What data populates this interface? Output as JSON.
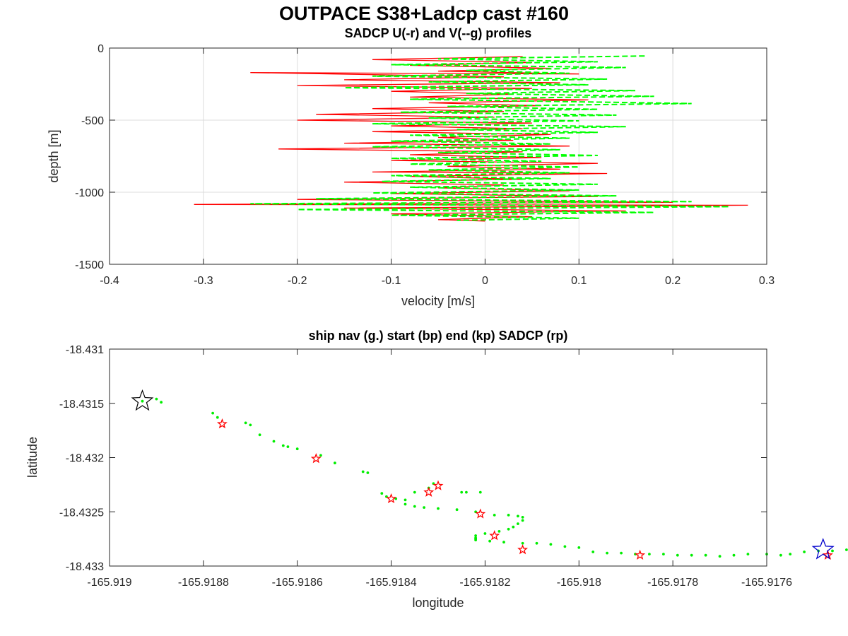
{
  "suptitle": "OUTPACE S38+Ladcp cast #160",
  "chart_data": [
    {
      "type": "line",
      "title": "SADCP U(-r) and V(--g) profiles",
      "xlabel": "velocity [m/s]",
      "ylabel": "depth [m]",
      "xlim": [
        -0.4,
        0.3
      ],
      "ylim": [
        -1500,
        0
      ],
      "xticks": [
        -0.4,
        -0.3,
        -0.2,
        -0.1,
        0,
        0.1,
        0.2,
        0.3
      ],
      "xtick_labels": [
        "-0.4",
        "-0.3",
        "-0.2",
        "-0.1",
        "0",
        "0.1",
        "0.2",
        "0.3"
      ],
      "yticks": [
        0,
        -500,
        -1000,
        -1500
      ],
      "ytick_labels": [
        "0",
        "-500",
        "-1000",
        "-1500"
      ],
      "grid": true,
      "series": [
        {
          "name": "U",
          "color": "#ff0000",
          "style": "solid",
          "points": [
            [
              0.04,
              -60
            ],
            [
              -0.12,
              -80
            ],
            [
              0.05,
              -100
            ],
            [
              -0.08,
              -120
            ],
            [
              0.07,
              -140
            ],
            [
              -0.05,
              -160
            ],
            [
              0.1,
              -180
            ],
            [
              -0.25,
              -170
            ],
            [
              0.02,
              -200
            ],
            [
              -0.15,
              -220
            ],
            [
              0.08,
              -240
            ],
            [
              -0.2,
              -260
            ],
            [
              0.05,
              -280
            ],
            [
              -0.1,
              -300
            ],
            [
              0.03,
              -320
            ],
            [
              -0.08,
              -340
            ],
            [
              0.11,
              -360
            ],
            [
              -0.06,
              -380
            ],
            [
              0.06,
              -400
            ],
            [
              -0.12,
              -420
            ],
            [
              0.02,
              -440
            ],
            [
              -0.18,
              -460
            ],
            [
              0.01,
              -480
            ],
            [
              -0.2,
              -500
            ],
            [
              0.05,
              -520
            ],
            [
              -0.1,
              -540
            ],
            [
              0.04,
              -560
            ],
            [
              -0.12,
              -580
            ],
            [
              0.07,
              -600
            ],
            [
              -0.05,
              -620
            ],
            [
              0.03,
              -640
            ],
            [
              -0.15,
              -660
            ],
            [
              0.09,
              -680
            ],
            [
              -0.22,
              -700
            ],
            [
              0.04,
              -720
            ],
            [
              -0.08,
              -740
            ],
            [
              0.06,
              -760
            ],
            [
              -0.1,
              -780
            ],
            [
              0.12,
              -800
            ],
            [
              -0.04,
              -820
            ],
            [
              0.08,
              -840
            ],
            [
              -0.12,
              -860
            ],
            [
              0.13,
              -870
            ],
            [
              -0.08,
              -890
            ],
            [
              0.04,
              -910
            ],
            [
              -0.15,
              -930
            ],
            [
              0.02,
              -950
            ],
            [
              -0.05,
              -970
            ],
            [
              0.09,
              -990
            ],
            [
              -0.1,
              -1010
            ],
            [
              0.12,
              -1030
            ],
            [
              -0.2,
              -1050
            ],
            [
              0.2,
              -1070
            ],
            [
              -0.31,
              -1085
            ],
            [
              0.28,
              -1090
            ],
            [
              -0.15,
              -1110
            ],
            [
              0.15,
              -1130
            ],
            [
              -0.1,
              -1150
            ],
            [
              0.05,
              -1170
            ],
            [
              -0.05,
              -1190
            ],
            [
              0.0,
              -1200
            ]
          ]
        },
        {
          "name": "V",
          "color": "#00ff00",
          "style": "dashed",
          "points": [
            [
              0.17,
              -55
            ],
            [
              -0.05,
              -75
            ],
            [
              0.12,
              -95
            ],
            [
              -0.1,
              -115
            ],
            [
              0.15,
              -135
            ],
            [
              -0.02,
              -155
            ],
            [
              0.09,
              -175
            ],
            [
              -0.12,
              -195
            ],
            [
              0.13,
              -215
            ],
            [
              -0.06,
              -235
            ],
            [
              0.11,
              -255
            ],
            [
              -0.15,
              -275
            ],
            [
              0.16,
              -295
            ],
            [
              -0.02,
              -315
            ],
            [
              0.18,
              -335
            ],
            [
              -0.08,
              -355
            ],
            [
              0.22,
              -385
            ],
            [
              -0.04,
              -405
            ],
            [
              0.12,
              -425
            ],
            [
              -0.09,
              -445
            ],
            [
              0.14,
              -465
            ],
            [
              -0.06,
              -485
            ],
            [
              0.1,
              -505
            ],
            [
              -0.12,
              -525
            ],
            [
              0.15,
              -545
            ],
            [
              -0.03,
              -565
            ],
            [
              0.12,
              -585
            ],
            [
              -0.08,
              -605
            ],
            [
              0.09,
              -625
            ],
            [
              -0.1,
              -645
            ],
            [
              0.07,
              -665
            ],
            [
              -0.12,
              -685
            ],
            [
              0.08,
              -705
            ],
            [
              -0.05,
              -725
            ],
            [
              0.12,
              -745
            ],
            [
              -0.1,
              -765
            ],
            [
              0.06,
              -785
            ],
            [
              -0.08,
              -805
            ],
            [
              0.1,
              -825
            ],
            [
              -0.06,
              -845
            ],
            [
              0.09,
              -865
            ],
            [
              -0.1,
              -885
            ],
            [
              0.07,
              -905
            ],
            [
              -0.11,
              -925
            ],
            [
              0.12,
              -945
            ],
            [
              -0.08,
              -965
            ],
            [
              0.1,
              -985
            ],
            [
              -0.12,
              -1005
            ],
            [
              0.14,
              -1025
            ],
            [
              -0.18,
              -1045
            ],
            [
              0.22,
              -1065
            ],
            [
              -0.25,
              -1080
            ],
            [
              0.26,
              -1100
            ],
            [
              -0.2,
              -1120
            ],
            [
              0.18,
              -1140
            ],
            [
              -0.1,
              -1160
            ],
            [
              0.1,
              -1180
            ],
            [
              -0.03,
              -1195
            ]
          ]
        }
      ]
    },
    {
      "type": "scatter",
      "title": "ship nav (g.) start (bp) end (kp) SADCP (rp)",
      "xlabel": "longitude",
      "ylabel": "latitude",
      "xlim": [
        -165.919,
        -165.9176
      ],
      "ylim": [
        -18.433,
        -18.431
      ],
      "xticks": [
        -165.919,
        -165.9188,
        -165.9186,
        -165.9184,
        -165.9182,
        -165.918,
        -165.9178,
        -165.9176
      ],
      "xtick_labels": [
        "-165.919",
        "-165.9188",
        "-165.9186",
        "-165.9184",
        "-165.9182",
        "-165.918",
        "-165.9178",
        "-165.9176"
      ],
      "yticks": [
        -18.431,
        -18.4315,
        -18.432,
        -18.4325,
        -18.433
      ],
      "ytick_labels": [
        "-18.431",
        "-18.4315",
        "-18.432",
        "-18.4325",
        "-18.433"
      ],
      "grid": false,
      "ship_nav": {
        "color": "#00ee00",
        "points": [
          [
            -165.91893,
            -18.43148
          ],
          [
            -165.9189,
            -18.43146
          ],
          [
            -165.91889,
            -18.43149
          ],
          [
            -165.91878,
            -18.43159
          ],
          [
            -165.91877,
            -18.43163
          ],
          [
            -165.91871,
            -18.43168
          ],
          [
            -165.9187,
            -18.4317
          ],
          [
            -165.91868,
            -18.43179
          ],
          [
            -165.91865,
            -18.43185
          ],
          [
            -165.91863,
            -18.43189
          ],
          [
            -165.91862,
            -18.4319
          ],
          [
            -165.9186,
            -18.43192
          ],
          [
            -165.91855,
            -18.43198
          ],
          [
            -165.91852,
            -18.43205
          ],
          [
            -165.91846,
            -18.43213
          ],
          [
            -165.91845,
            -18.43214
          ],
          [
            -165.91842,
            -18.43233
          ],
          [
            -165.91841,
            -18.43236
          ],
          [
            -165.91839,
            -18.43238
          ],
          [
            -165.91837,
            -18.43239
          ],
          [
            -165.91835,
            -18.43232
          ],
          [
            -165.91837,
            -18.43243
          ],
          [
            -165.91835,
            -18.43245
          ],
          [
            -165.91833,
            -18.43246
          ],
          [
            -165.9183,
            -18.43247
          ],
          [
            -165.91831,
            -18.43224
          ],
          [
            -165.91832,
            -18.43228
          ],
          [
            -165.91825,
            -18.43232
          ],
          [
            -165.91824,
            -18.43232
          ],
          [
            -165.91821,
            -18.43232
          ],
          [
            -165.91826,
            -18.43248
          ],
          [
            -165.91822,
            -18.4325
          ],
          [
            -165.91818,
            -18.43253
          ],
          [
            -165.91815,
            -18.43253
          ],
          [
            -165.91813,
            -18.43254
          ],
          [
            -165.91812,
            -18.43255
          ],
          [
            -165.91812,
            -18.43258
          ],
          [
            -165.91813,
            -18.43261
          ],
          [
            -165.91814,
            -18.43264
          ],
          [
            -165.91815,
            -18.43266
          ],
          [
            -165.91817,
            -18.43268
          ],
          [
            -165.9182,
            -18.4327
          ],
          [
            -165.91822,
            -18.43272
          ],
          [
            -165.91822,
            -18.43274
          ],
          [
            -165.91822,
            -18.43275
          ],
          [
            -165.91822,
            -18.43276
          ],
          [
            -165.91819,
            -18.43277
          ],
          [
            -165.91816,
            -18.43278
          ],
          [
            -165.91812,
            -18.43279
          ],
          [
            -165.91809,
            -18.43279
          ],
          [
            -165.91806,
            -18.4328
          ],
          [
            -165.91803,
            -18.43282
          ],
          [
            -165.918,
            -18.43283
          ],
          [
            -165.91797,
            -18.43287
          ],
          [
            -165.91794,
            -18.43288
          ],
          [
            -165.91791,
            -18.43288
          ],
          [
            -165.91788,
            -18.43289
          ],
          [
            -165.91785,
            -18.43289
          ],
          [
            -165.91782,
            -18.43289
          ],
          [
            -165.91779,
            -18.4329
          ],
          [
            -165.91776,
            -18.4329
          ],
          [
            -165.91773,
            -18.4329
          ],
          [
            -165.9177,
            -18.43291
          ],
          [
            -165.91767,
            -18.4329
          ],
          [
            -165.91764,
            -18.43289
          ],
          [
            -165.9176,
            -18.43289
          ],
          [
            -165.91757,
            -18.4329
          ],
          [
            -165.91755,
            -18.43289
          ],
          [
            -165.91752,
            -18.43287
          ],
          [
            -165.91749,
            -18.43286
          ],
          [
            -165.91746,
            -18.43286
          ],
          [
            -165.91743,
            -18.43285
          ],
          [
            -165.9174,
            -18.43284
          ],
          [
            -165.91738,
            -18.43285
          ]
        ]
      },
      "sadcp_points": {
        "color": "#ff0000",
        "points": [
          [
            -165.91876,
            -18.43169
          ],
          [
            -165.91856,
            -18.43201
          ],
          [
            -165.9184,
            -18.43238
          ],
          [
            -165.91832,
            -18.43232
          ],
          [
            -165.9183,
            -18.43226
          ],
          [
            -165.91821,
            -18.43252
          ],
          [
            -165.91818,
            -18.43272
          ],
          [
            -165.91812,
            -18.43285
          ],
          [
            -165.91787,
            -18.4329
          ],
          [
            -165.91747,
            -18.4329
          ]
        ]
      },
      "start": {
        "color": "#000000",
        "point": [
          -165.91893,
          -18.43148
        ]
      },
      "end": {
        "color": "#0000cc",
        "point": [
          -165.91748,
          -18.43285
        ]
      }
    }
  ]
}
